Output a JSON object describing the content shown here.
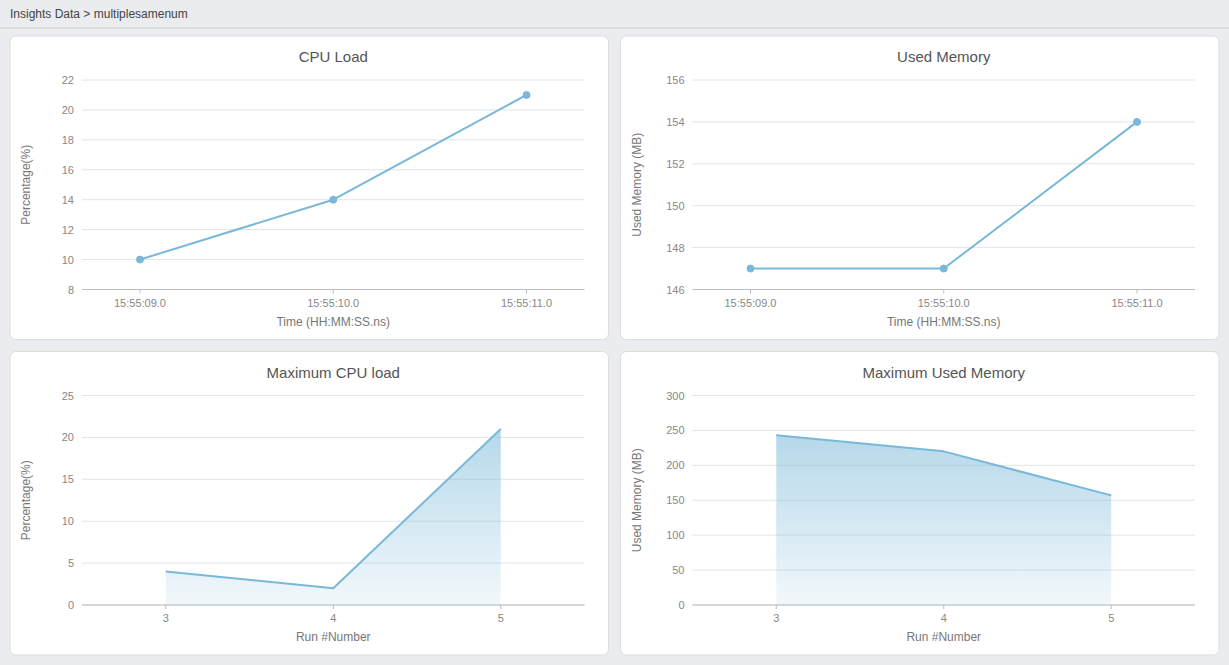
{
  "title": "Insights Data > multiplesamenum",
  "chart_data": [
    {
      "type": "line",
      "title": "CPU Load",
      "x_label": "Time (HH:MM:SS.ns)",
      "y_label": "Percentage(%)",
      "categories": [
        "15:55:09.0",
        "15:55:10.0",
        "15:55:11.0"
      ],
      "values": [
        10,
        14,
        21
      ],
      "color": "#7ab8d9",
      "marker": "circle",
      "ylim": [
        8,
        22
      ],
      "yticks": [
        8,
        10,
        12,
        14,
        16,
        18,
        20,
        22
      ],
      "grid": true
    },
    {
      "type": "line",
      "title": "Used Memory",
      "x_label": "Time (HH:MM:SS.ns)",
      "y_label": "Used Memory (MB)",
      "categories": [
        "15:55:09.0",
        "15:55:10.0",
        "15:55:11.0"
      ],
      "values": [
        147,
        147,
        154
      ],
      "color": "#7ab8d9",
      "marker": "circle",
      "ylim": [
        146,
        156
      ],
      "yticks": [
        146,
        148,
        150,
        152,
        154,
        156
      ],
      "grid": true
    },
    {
      "type": "area",
      "title": "Maximum CPU load",
      "x_label": "Run #Number",
      "y_label": "Percentage(%)",
      "x": [
        3,
        4,
        5
      ],
      "values": [
        4,
        2,
        21
      ],
      "color": "#7ab8d9",
      "xlim": [
        2.5,
        5.5
      ],
      "xticks": [
        3,
        4,
        5
      ],
      "ylim": [
        0,
        25
      ],
      "yticks": [
        0,
        5,
        10,
        15,
        20,
        25
      ],
      "grid": true
    },
    {
      "type": "area",
      "title": "Maximum Used Memory",
      "x_label": "Run #Number",
      "y_label": "Used Memory (MB)",
      "x": [
        3,
        4,
        5
      ],
      "values": [
        243,
        220,
        157
      ],
      "color": "#7ab8d9",
      "xlim": [
        2.5,
        5.5
      ],
      "xticks": [
        3,
        4,
        5
      ],
      "ylim": [
        0,
        300
      ],
      "yticks": [
        0,
        50,
        100,
        150,
        200,
        250,
        300
      ],
      "grid": true
    }
  ]
}
